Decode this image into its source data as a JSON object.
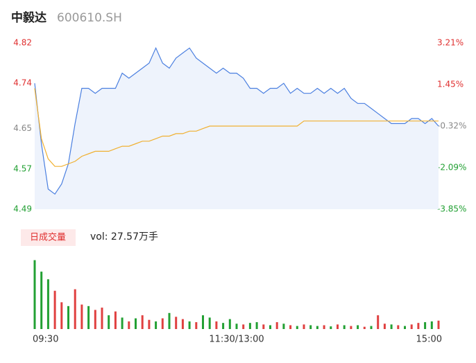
{
  "chart_data": {
    "type": "intraday",
    "title": "中毅达",
    "subtitle": "600610.SH",
    "categories": [
      "09:30",
      null,
      null,
      null,
      null,
      null,
      null,
      null,
      null,
      null,
      null,
      null,
      null,
      null,
      null,
      null,
      null,
      null,
      null,
      null,
      null,
      null,
      null,
      null,
      null,
      null,
      null,
      null,
      null,
      null,
      "11:30/13:00",
      null,
      null,
      null,
      null,
      null,
      null,
      null,
      null,
      null,
      null,
      null,
      null,
      null,
      null,
      null,
      null,
      null,
      null,
      null,
      null,
      null,
      null,
      null,
      null,
      null,
      null,
      null,
      null,
      null,
      "15:00"
    ],
    "series": [
      {
        "name": "price",
        "color": "#4a7fe0",
        "values": [
          4.74,
          4.62,
          4.53,
          4.52,
          4.54,
          4.58,
          4.66,
          4.73,
          4.73,
          4.72,
          4.73,
          4.73,
          4.73,
          4.76,
          4.75,
          4.76,
          4.77,
          4.78,
          4.81,
          4.78,
          4.77,
          4.79,
          4.8,
          4.81,
          4.79,
          4.78,
          4.77,
          4.76,
          4.77,
          4.76,
          4.76,
          4.75,
          4.73,
          4.73,
          4.72,
          4.73,
          4.73,
          4.74,
          4.72,
          4.73,
          4.72,
          4.72,
          4.73,
          4.72,
          4.73,
          4.72,
          4.73,
          4.71,
          4.7,
          4.7,
          4.69,
          4.68,
          4.67,
          4.66,
          4.66,
          4.66,
          4.67,
          4.67,
          4.66,
          4.67,
          4.655
        ]
      },
      {
        "name": "average",
        "color": "#f0b030",
        "values": [
          4.73,
          4.63,
          4.59,
          4.575,
          4.575,
          4.58,
          4.585,
          4.595,
          4.6,
          4.605,
          4.605,
          4.605,
          4.61,
          4.615,
          4.615,
          4.62,
          4.625,
          4.625,
          4.63,
          4.635,
          4.635,
          4.64,
          4.64,
          4.645,
          4.645,
          4.65,
          4.655,
          4.655,
          4.655,
          4.655,
          4.655,
          4.655,
          4.655,
          4.655,
          4.655,
          4.655,
          4.655,
          4.655,
          4.655,
          4.655,
          4.665,
          4.665,
          4.665,
          4.665,
          4.665,
          4.665,
          4.665,
          4.665,
          4.665,
          4.665,
          4.665,
          4.665,
          4.665,
          4.665,
          4.665,
          4.665,
          4.665,
          4.665,
          4.665,
          4.665,
          4.665
        ]
      }
    ],
    "ylim": [
      4.49,
      4.82
    ],
    "yticks": [
      4.82,
      4.74,
      4.65,
      4.57,
      4.49
    ],
    "ytick_colors": [
      "#e03030",
      "#e03030",
      "#888888",
      "#22a033",
      "#22a033"
    ],
    "y2lim": [
      -3.85,
      3.21
    ],
    "y2ticks": [
      {
        "value": 3.21,
        "label": "3.21%"
      },
      {
        "value": 1.45,
        "label": "1.45%"
      },
      {
        "value": -0.32,
        "label": "-0.32%"
      },
      {
        "value": -2.09,
        "label": "-2.09%"
      },
      {
        "value": -3.85,
        "label": "-3.85%"
      }
    ],
    "y2tick_colors": [
      "#e03030",
      "#e03030",
      "#888888",
      "#22a033",
      "#22a033"
    ],
    "volume_panel": {
      "label": "日成交量",
      "summary": "vol: 27.57万手",
      "vlim": [
        0,
        9500
      ],
      "values": [
        9000,
        7500,
        6500,
        5000,
        3500,
        3000,
        5200,
        3200,
        3000,
        2500,
        2800,
        1800,
        2300,
        1500,
        1000,
        1400,
        1800,
        1200,
        1000,
        1400,
        2100,
        1600,
        1300,
        1000,
        900,
        1800,
        1500,
        1000,
        800,
        1300,
        700,
        600,
        800,
        900,
        600,
        500,
        900,
        700,
        500,
        400,
        600,
        500,
        400,
        500,
        350,
        600,
        500,
        400,
        500,
        300,
        400,
        1800,
        700,
        600,
        500,
        400,
        600,
        800,
        900,
        1000,
        1100
      ],
      "colors": [
        "#22a033",
        "#22a033",
        "#22a033",
        "#e04040",
        "#e04040",
        "#22a033",
        "#e04040",
        "#e04040",
        "#22a033",
        "#e04040",
        "#e04040",
        "#22a033",
        "#e04040",
        "#22a033",
        "#e04040",
        "#22a033",
        "#e04040",
        "#e04040",
        "#22a033",
        "#e04040",
        "#22a033",
        "#e04040",
        "#e04040",
        "#22a033",
        "#e04040",
        "#22a033",
        "#22a033",
        "#e04040",
        "#22a033",
        "#22a033",
        "#22a033",
        "#e04040",
        "#22a033",
        "#22a033",
        "#e04040",
        "#22a033",
        "#e04040",
        "#22a033",
        "#e04040",
        "#22a033",
        "#e04040",
        "#22a033",
        "#22a033",
        "#e04040",
        "#22a033",
        "#e04040",
        "#22a033",
        "#e04040",
        "#22a033",
        "#e04040",
        "#22a033",
        "#e04040",
        "#e04040",
        "#22a033",
        "#e04040",
        "#22a033",
        "#e04040",
        "#e04040",
        "#22a033",
        "#22a033",
        "#e04040"
      ]
    }
  }
}
